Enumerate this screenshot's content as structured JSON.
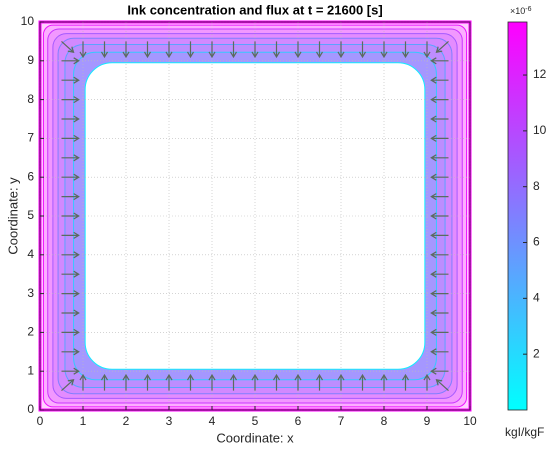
{
  "chart_data": {
    "type": "contour-quiver",
    "title": "Ink concentration and flux at t = 21600 [s]",
    "xlabel": "Coordinate: x",
    "ylabel": "Coordinate: y",
    "xlim": [
      0,
      10
    ],
    "ylim": [
      0,
      10
    ],
    "xticks": [
      0,
      1,
      2,
      3,
      4,
      5,
      6,
      7,
      8,
      9,
      10
    ],
    "yticks": [
      0,
      1,
      2,
      3,
      4,
      5,
      6,
      7,
      8,
      9,
      10
    ],
    "grid": true,
    "colormap": [
      "#00ffff",
      "#ff00ff"
    ],
    "clim": [
      0,
      13.9
    ],
    "cticks": [
      2,
      4,
      6,
      8,
      10,
      12
    ],
    "colorbar_multiplier": {
      "base": "×10",
      "exponent": "-6"
    },
    "colorbar_label": "kgI/kgF",
    "contours": {
      "distance": [
        0,
        0.08,
        0.18,
        0.3,
        0.42,
        0.58,
        0.78,
        1.05
      ],
      "level": [
        13.9,
        13,
        11,
        9,
        7,
        5,
        3,
        1
      ]
    },
    "quiver": {
      "color": "#5b6b5e",
      "x": [
        0.5,
        1,
        1.5,
        2,
        2.5,
        3,
        3.5,
        4,
        4.5,
        5,
        5.5,
        6,
        6.5,
        7,
        7.5,
        8,
        8.5,
        9,
        9.5,
        0.5,
        1,
        1.5,
        2,
        2.5,
        3,
        3.5,
        4,
        4.5,
        5,
        5.5,
        6,
        6.5,
        7,
        7.5,
        8,
        8.5,
        9,
        9.5,
        0.5,
        0.5,
        0.5,
        0.5,
        0.5,
        0.5,
        0.5,
        0.5,
        0.5,
        0.5,
        0.5,
        0.5,
        0.5,
        0.5,
        0.5,
        0.5,
        0.5,
        9.5,
        9.5,
        9.5,
        9.5,
        9.5,
        9.5,
        9.5,
        9.5,
        9.5,
        9.5,
        9.5,
        9.5,
        9.5,
        9.5,
        9.5,
        9.5,
        9.5
      ],
      "y": [
        9.5,
        9.5,
        9.5,
        9.5,
        9.5,
        9.5,
        9.5,
        9.5,
        9.5,
        9.5,
        9.5,
        9.5,
        9.5,
        9.5,
        9.5,
        9.5,
        9.5,
        9.5,
        9.5,
        0.5,
        0.5,
        0.5,
        0.5,
        0.5,
        0.5,
        0.5,
        0.5,
        0.5,
        0.5,
        0.5,
        0.5,
        0.5,
        0.5,
        0.5,
        0.5,
        0.5,
        0.5,
        0.5,
        1,
        1.5,
        2,
        2.5,
        3,
        3.5,
        4,
        4.5,
        5,
        5.5,
        6,
        6.5,
        7,
        7.5,
        8,
        8.5,
        9,
        1,
        1.5,
        2,
        2.5,
        3,
        3.5,
        4,
        4.5,
        5,
        5.5,
        6,
        6.5,
        7,
        7.5,
        8,
        8.5,
        9
      ],
      "u": [
        0.28,
        0,
        0,
        0,
        0,
        0,
        0,
        0,
        0,
        0,
        0,
        0,
        0,
        0,
        0,
        0,
        0,
        0,
        -0.28,
        0.28,
        0,
        0,
        0,
        0,
        0,
        0,
        0,
        0,
        0,
        0,
        0,
        0,
        0,
        0,
        0,
        0,
        0,
        -0.28,
        0.4,
        0.4,
        0.4,
        0.4,
        0.4,
        0.4,
        0.4,
        0.4,
        0.4,
        0.4,
        0.4,
        0.4,
        0.4,
        0.4,
        0.4,
        0.4,
        0.4,
        -0.4,
        -0.4,
        -0.4,
        -0.4,
        -0.4,
        -0.4,
        -0.4,
        -0.4,
        -0.4,
        -0.4,
        -0.4,
        -0.4,
        -0.4,
        -0.4,
        -0.4,
        -0.4,
        -0.4
      ],
      "v": [
        -0.28,
        -0.4,
        -0.4,
        -0.4,
        -0.4,
        -0.4,
        -0.4,
        -0.4,
        -0.4,
        -0.4,
        -0.4,
        -0.4,
        -0.4,
        -0.4,
        -0.4,
        -0.4,
        -0.4,
        -0.4,
        -0.28,
        0.28,
        0.4,
        0.4,
        0.4,
        0.4,
        0.4,
        0.4,
        0.4,
        0.4,
        0.4,
        0.4,
        0.4,
        0.4,
        0.4,
        0.4,
        0.4,
        0.4,
        0.4,
        0.28,
        0,
        0,
        0,
        0,
        0,
        0,
        0,
        0,
        0,
        0,
        0,
        0,
        0,
        0,
        0,
        0,
        0,
        0,
        0,
        0,
        0,
        0,
        0,
        0,
        0,
        0,
        0,
        0,
        0,
        0,
        0,
        0,
        0,
        0
      ]
    }
  }
}
